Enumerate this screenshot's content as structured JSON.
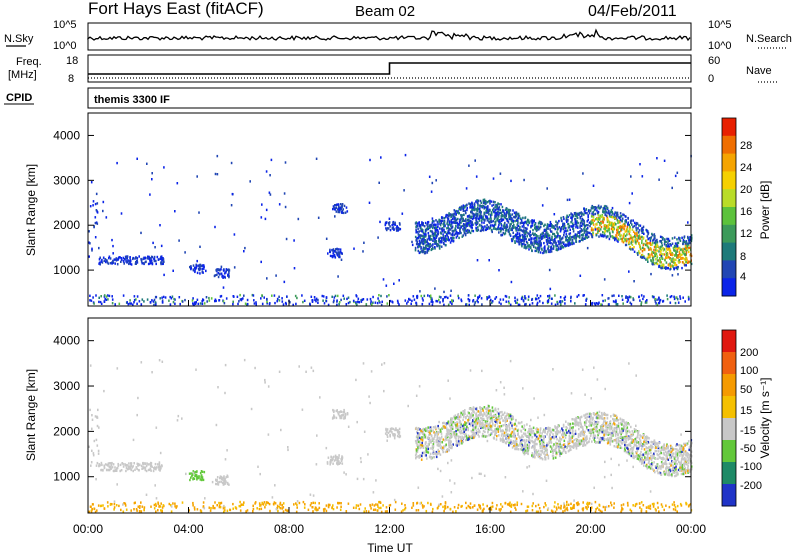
{
  "header": {
    "station": "Fort Hays East (fitACF)",
    "beam": "Beam 02",
    "date": "04/Feb/2011"
  },
  "top_panels": {
    "nsky_label": "N.Sky",
    "nsearch_label": "N.Search",
    "nsky_ticks": [
      "10^5",
      "10^0"
    ],
    "nsky_right_ticks": [
      "10^5",
      "10^0"
    ],
    "freq_label_1": "Freq.",
    "freq_label_2": "[MHz]",
    "freq_ticks": [
      "18",
      "8"
    ],
    "nave_label": "Nave",
    "nave_ticks": [
      "60",
      "0"
    ],
    "cpid_label": "CPID",
    "cpid_value": "themis 3300 IF"
  },
  "x_axis": {
    "label": "Time UT",
    "ticks": [
      "00:00",
      "04:00",
      "08:00",
      "12:00",
      "16:00",
      "20:00",
      "00:00"
    ]
  },
  "chart_data": [
    {
      "type": "heatmap",
      "name": "power_panel",
      "ylabel": "Slant Range [km]",
      "yticks": [
        "1000",
        "2000",
        "3000",
        "4000"
      ],
      "ylim": [
        200,
        4500
      ],
      "xlim_hours": [
        0,
        24
      ],
      "colorbar": {
        "label": "Power [dB]",
        "ticks": [
          "28",
          "24",
          "20",
          "16",
          "12",
          "8",
          "4"
        ],
        "colors": [
          "#0b24e8",
          "#2146b4",
          "#1e7a7a",
          "#3c9a5a",
          "#5cc23c",
          "#b9dc28",
          "#f5d000",
          "#f5a400",
          "#ef6e00",
          "#e82000"
        ]
      }
    },
    {
      "type": "heatmap",
      "name": "velocity_panel",
      "ylabel": "Slant Range [km]",
      "yticks": [
        "1000",
        "2000",
        "3000",
        "4000"
      ],
      "ylim": [
        200,
        4500
      ],
      "xlim_hours": [
        0,
        24
      ],
      "colorbar": {
        "label": "Velocity [m s⁻¹]",
        "ticks": [
          "200",
          "100",
          "50",
          "15",
          "-15",
          "-50",
          "-100",
          "-200"
        ],
        "colors": [
          "#2034c8",
          "#1e8a66",
          "#62c83a",
          "#c8c8c8",
          "#f5c000",
          "#f59a00",
          "#f06010",
          "#e01810"
        ]
      }
    }
  ]
}
